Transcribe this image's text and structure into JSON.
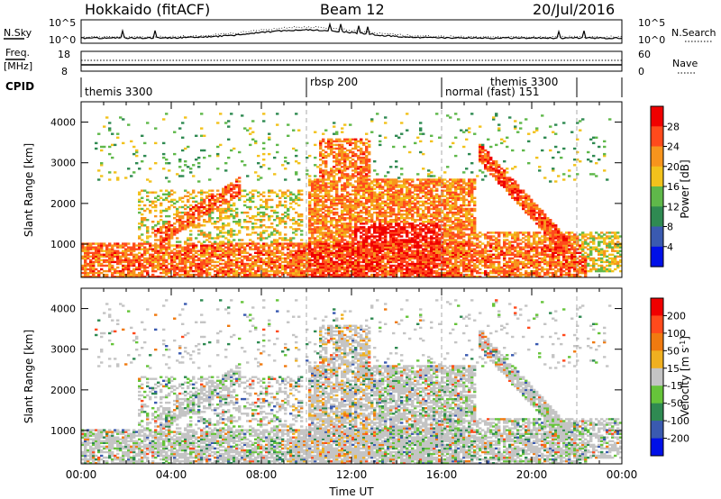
{
  "header": {
    "station": "Hokkaido (fitACF)",
    "beam": "Beam 12",
    "date": "20/Jul/2016"
  },
  "aux_panels": {
    "nsky": {
      "label": "N.Sky",
      "left_ticks": [
        "10^5",
        "10^0"
      ],
      "right_ticks": [
        "10^5",
        "10^0"
      ],
      "right_label": "N.Search"
    },
    "freq": {
      "label_line1": "Freq.",
      "label_line2": "[MHz]",
      "left_ticks": [
        "18",
        "8"
      ],
      "right_ticks": [
        "60",
        "0"
      ],
      "right_label": "Nave"
    },
    "cpid": {
      "label": "CPID",
      "modes": [
        {
          "text": "themis 3300",
          "start_hour": 0.0
        },
        {
          "text": "rbsp 200",
          "start_hour": 10.0
        },
        {
          "text": "normal (fast) 151",
          "start_hour": 16.0
        },
        {
          "text": "themis 3300",
          "start_hour": 18.0
        }
      ],
      "dividers_hour": [
        10.0,
        16.0,
        22.0
      ]
    }
  },
  "chart_data": [
    {
      "type": "heatmap",
      "name": "Power",
      "ylabel": "Slant Range [km]",
      "xlabel": "",
      "ylim": [
        180,
        4500
      ],
      "yticks": [
        "1000",
        "2000",
        "3000",
        "4000"
      ],
      "colorbar": {
        "title": "Power [dB]",
        "ticks": [
          "4",
          "8",
          "12",
          "16",
          "20",
          "24",
          "28"
        ],
        "colors": [
          "#0010e8",
          "#3a5ab0",
          "#2f8a52",
          "#5fb84a",
          "#f2c21c",
          "#f7941d",
          "#ff4a1c",
          "#f00000"
        ]
      },
      "features": [
        {
          "t0": 0.0,
          "t1": 22.0,
          "r0": 500,
          "r1": 1000,
          "level": "strong"
        },
        {
          "t0": 3.5,
          "t1": 6.5,
          "r0": 1000,
          "r1": 2200,
          "level": "strong",
          "note": "band"
        },
        {
          "t0": 10.5,
          "t1": 12.5,
          "r0": 2400,
          "r1": 3600,
          "level": "strong"
        },
        {
          "t0": 10.0,
          "t1": 17.0,
          "r0": 300,
          "r1": 2500,
          "level": "strong"
        },
        {
          "t0": 17.5,
          "t1": 22.0,
          "r0": 700,
          "r1": 3000,
          "level": "strong",
          "note": "descending arc"
        }
      ]
    },
    {
      "type": "heatmap",
      "name": "Velocity",
      "ylabel": "Slant Range [km]",
      "xlabel": "Time UT",
      "ylim": [
        180,
        4500
      ],
      "yticks": [
        "1000",
        "2000",
        "3000",
        "4000"
      ],
      "xticks": [
        "00:00",
        "04:00",
        "08:00",
        "12:00",
        "16:00",
        "20:00",
        "00:00"
      ],
      "colorbar": {
        "title": "Velocity [m s-1]",
        "title_main": "Velocity [m s",
        "title_sup": "-1",
        "title_end": "]",
        "ticks": [
          "200",
          "100",
          "50",
          "15",
          "-15",
          "-50",
          "-100",
          "-200"
        ],
        "colors": [
          "#0010e8",
          "#3a5ab0",
          "#2f8a52",
          "#66c43a",
          "#c4c4c4",
          "#f0b020",
          "#f07a10",
          "#ff4a1c",
          "#f00000"
        ]
      }
    }
  ]
}
